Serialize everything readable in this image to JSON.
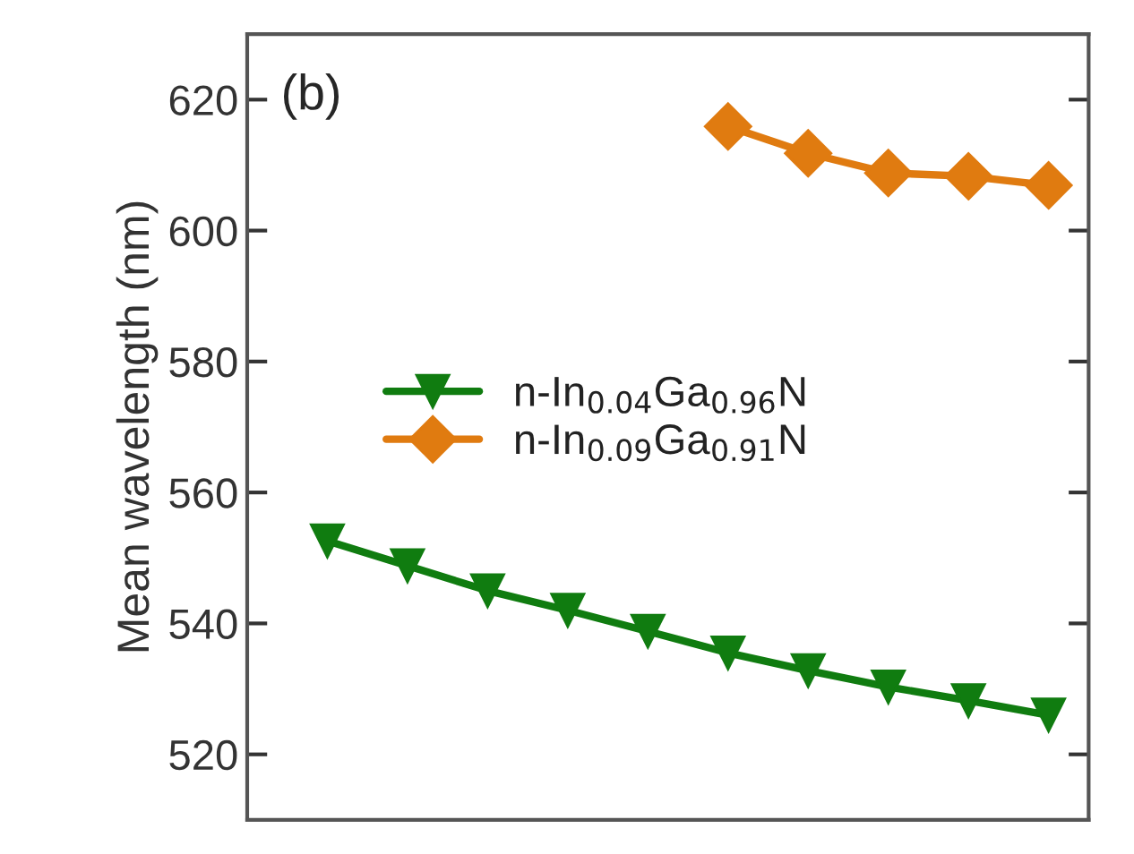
{
  "chart_data": {
    "type": "line",
    "ylabel": "Mean wavelength (nm)",
    "annotations": [
      "(b)"
    ],
    "categories": [
      null,
      null,
      null,
      null,
      null,
      null,
      null,
      null,
      null,
      null
    ],
    "series": [
      {
        "name": "n-In$_{0.04}$Ga$_{0.96}$N",
        "color": "#107c10",
        "marker": "triangle",
        "values": [
          552.6,
          548.8,
          545,
          542,
          538.8,
          535.5,
          532.8,
          530.3,
          528.2,
          526
        ]
      },
      {
        "name": "n-In$_{0.09}$Ga$_{0.91}$N",
        "color": "#e07b10",
        "marker": "diamond",
        "values": [
          null,
          null,
          null,
          null,
          null,
          615.9,
          611.8,
          608.8,
          608.3,
          606.9
        ]
      }
    ],
    "ylim": [
      510,
      630
    ],
    "yticks": [
      520,
      540,
      560,
      580,
      600,
      620
    ],
    "tick_labels": "y",
    "grid": false,
    "legend": "center left",
    "line_style": "solid"
  }
}
